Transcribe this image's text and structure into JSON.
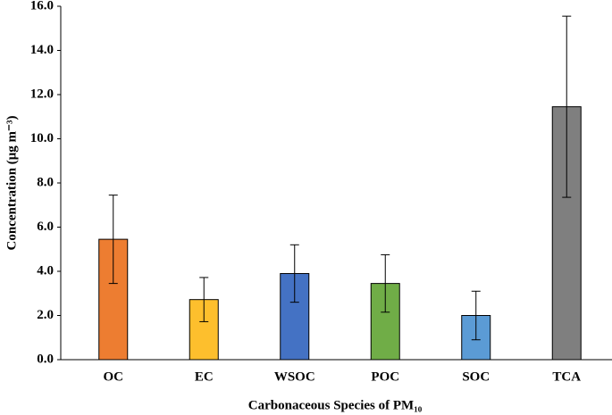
{
  "chart_data": {
    "type": "bar",
    "categories": [
      "OC",
      "EC",
      "WSOC",
      "POC",
      "SOC",
      "TCA"
    ],
    "values": [
      5.45,
      2.72,
      3.9,
      3.45,
      2.0,
      11.45
    ],
    "errors": [
      2.0,
      1.0,
      1.3,
      1.3,
      1.1,
      4.1
    ],
    "colors": [
      "#ed7d31",
      "#fdbf2d",
      "#4472c4",
      "#70ad47",
      "#5b9bd5",
      "#7f7f7f"
    ],
    "ylim": [
      0,
      16
    ],
    "yticks": [
      {
        "value": 0,
        "label": "0.0"
      },
      {
        "value": 2,
        "label": "2.0"
      },
      {
        "value": 4,
        "label": "4.0"
      },
      {
        "value": 6,
        "label": "6.0"
      },
      {
        "value": 8,
        "label": "8.0"
      },
      {
        "value": 10,
        "label": "10.0"
      },
      {
        "value": 12,
        "label": "12.0"
      },
      {
        "value": 14,
        "label": "14.0"
      },
      {
        "value": 16,
        "label": "16.0"
      }
    ],
    "xlabel": "Carbonaceous Species of PM₁₀",
    "ylabel": "Concentration (μg m⁻³)",
    "grid": false
  }
}
